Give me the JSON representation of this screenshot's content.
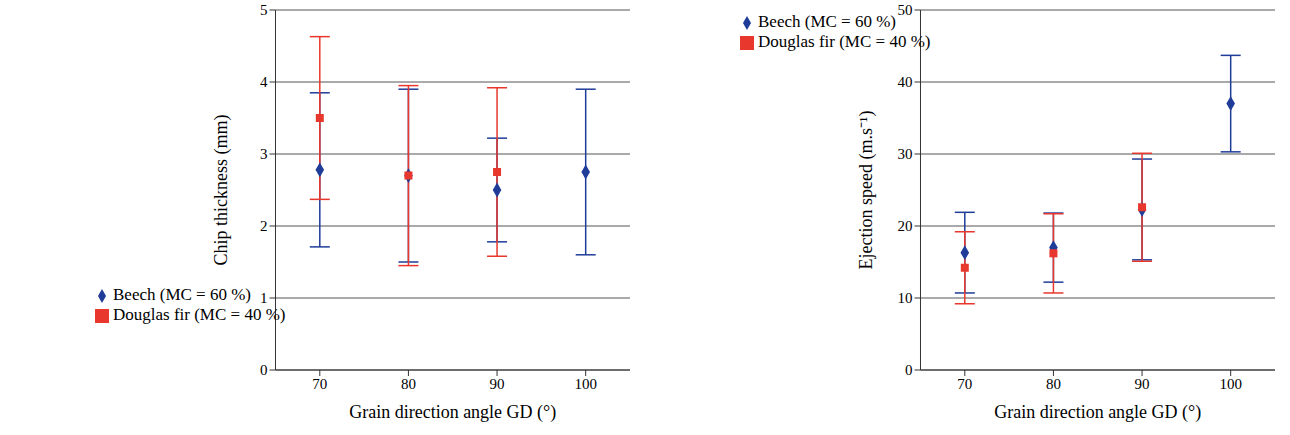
{
  "chart_data": [
    {
      "type": "scatter",
      "y_label": "Chip thickness (mm)",
      "x_label": "Grain direction angle GD (°)",
      "x": [
        70,
        80,
        90,
        100
      ],
      "xlim": [
        65,
        105
      ],
      "xticks": [
        70,
        80,
        90,
        100
      ],
      "ylim": [
        0,
        5
      ],
      "yticks": [
        0,
        1,
        2,
        3,
        4,
        5
      ],
      "grid": true,
      "legend": "lower left",
      "series": [
        {
          "name": "Beech (MC = 60 %)",
          "color": "#1f3c99",
          "marker": "diamond",
          "values": [
            2.78,
            2.7,
            2.5,
            2.75
          ],
          "errors": [
            1.07,
            1.2,
            0.72,
            1.15
          ]
        },
        {
          "name": "Douglas fir (MC = 40 %)",
          "color": "#e8382d",
          "marker": "square",
          "values": [
            3.5,
            2.7,
            2.75,
            null
          ],
          "errors": [
            1.13,
            1.25,
            1.17,
            null
          ]
        }
      ]
    },
    {
      "type": "scatter",
      "y_label": "Ejection speed (m.s⁻¹)",
      "x_label": "Grain direction angle GD (°)",
      "x": [
        70,
        80,
        90,
        100
      ],
      "xlim": [
        65,
        105
      ],
      "xticks": [
        70,
        80,
        90,
        100
      ],
      "ylim": [
        0,
        50
      ],
      "yticks": [
        0,
        10,
        20,
        30,
        40,
        50
      ],
      "grid": true,
      "legend": "upper left",
      "series": [
        {
          "name": "Beech (MC = 60 %)",
          "color": "#1f3c99",
          "marker": "diamond",
          "values": [
            16.3,
            17,
            22.3,
            37
          ],
          "errors": [
            5.6,
            4.8,
            7,
            6.7
          ]
        },
        {
          "name": "Douglas fir (MC = 40 %)",
          "color": "#e8382d",
          "marker": "square",
          "values": [
            14.2,
            16.2,
            22.6,
            null
          ],
          "errors": [
            5,
            5.5,
            7.5,
            null
          ]
        }
      ]
    }
  ]
}
